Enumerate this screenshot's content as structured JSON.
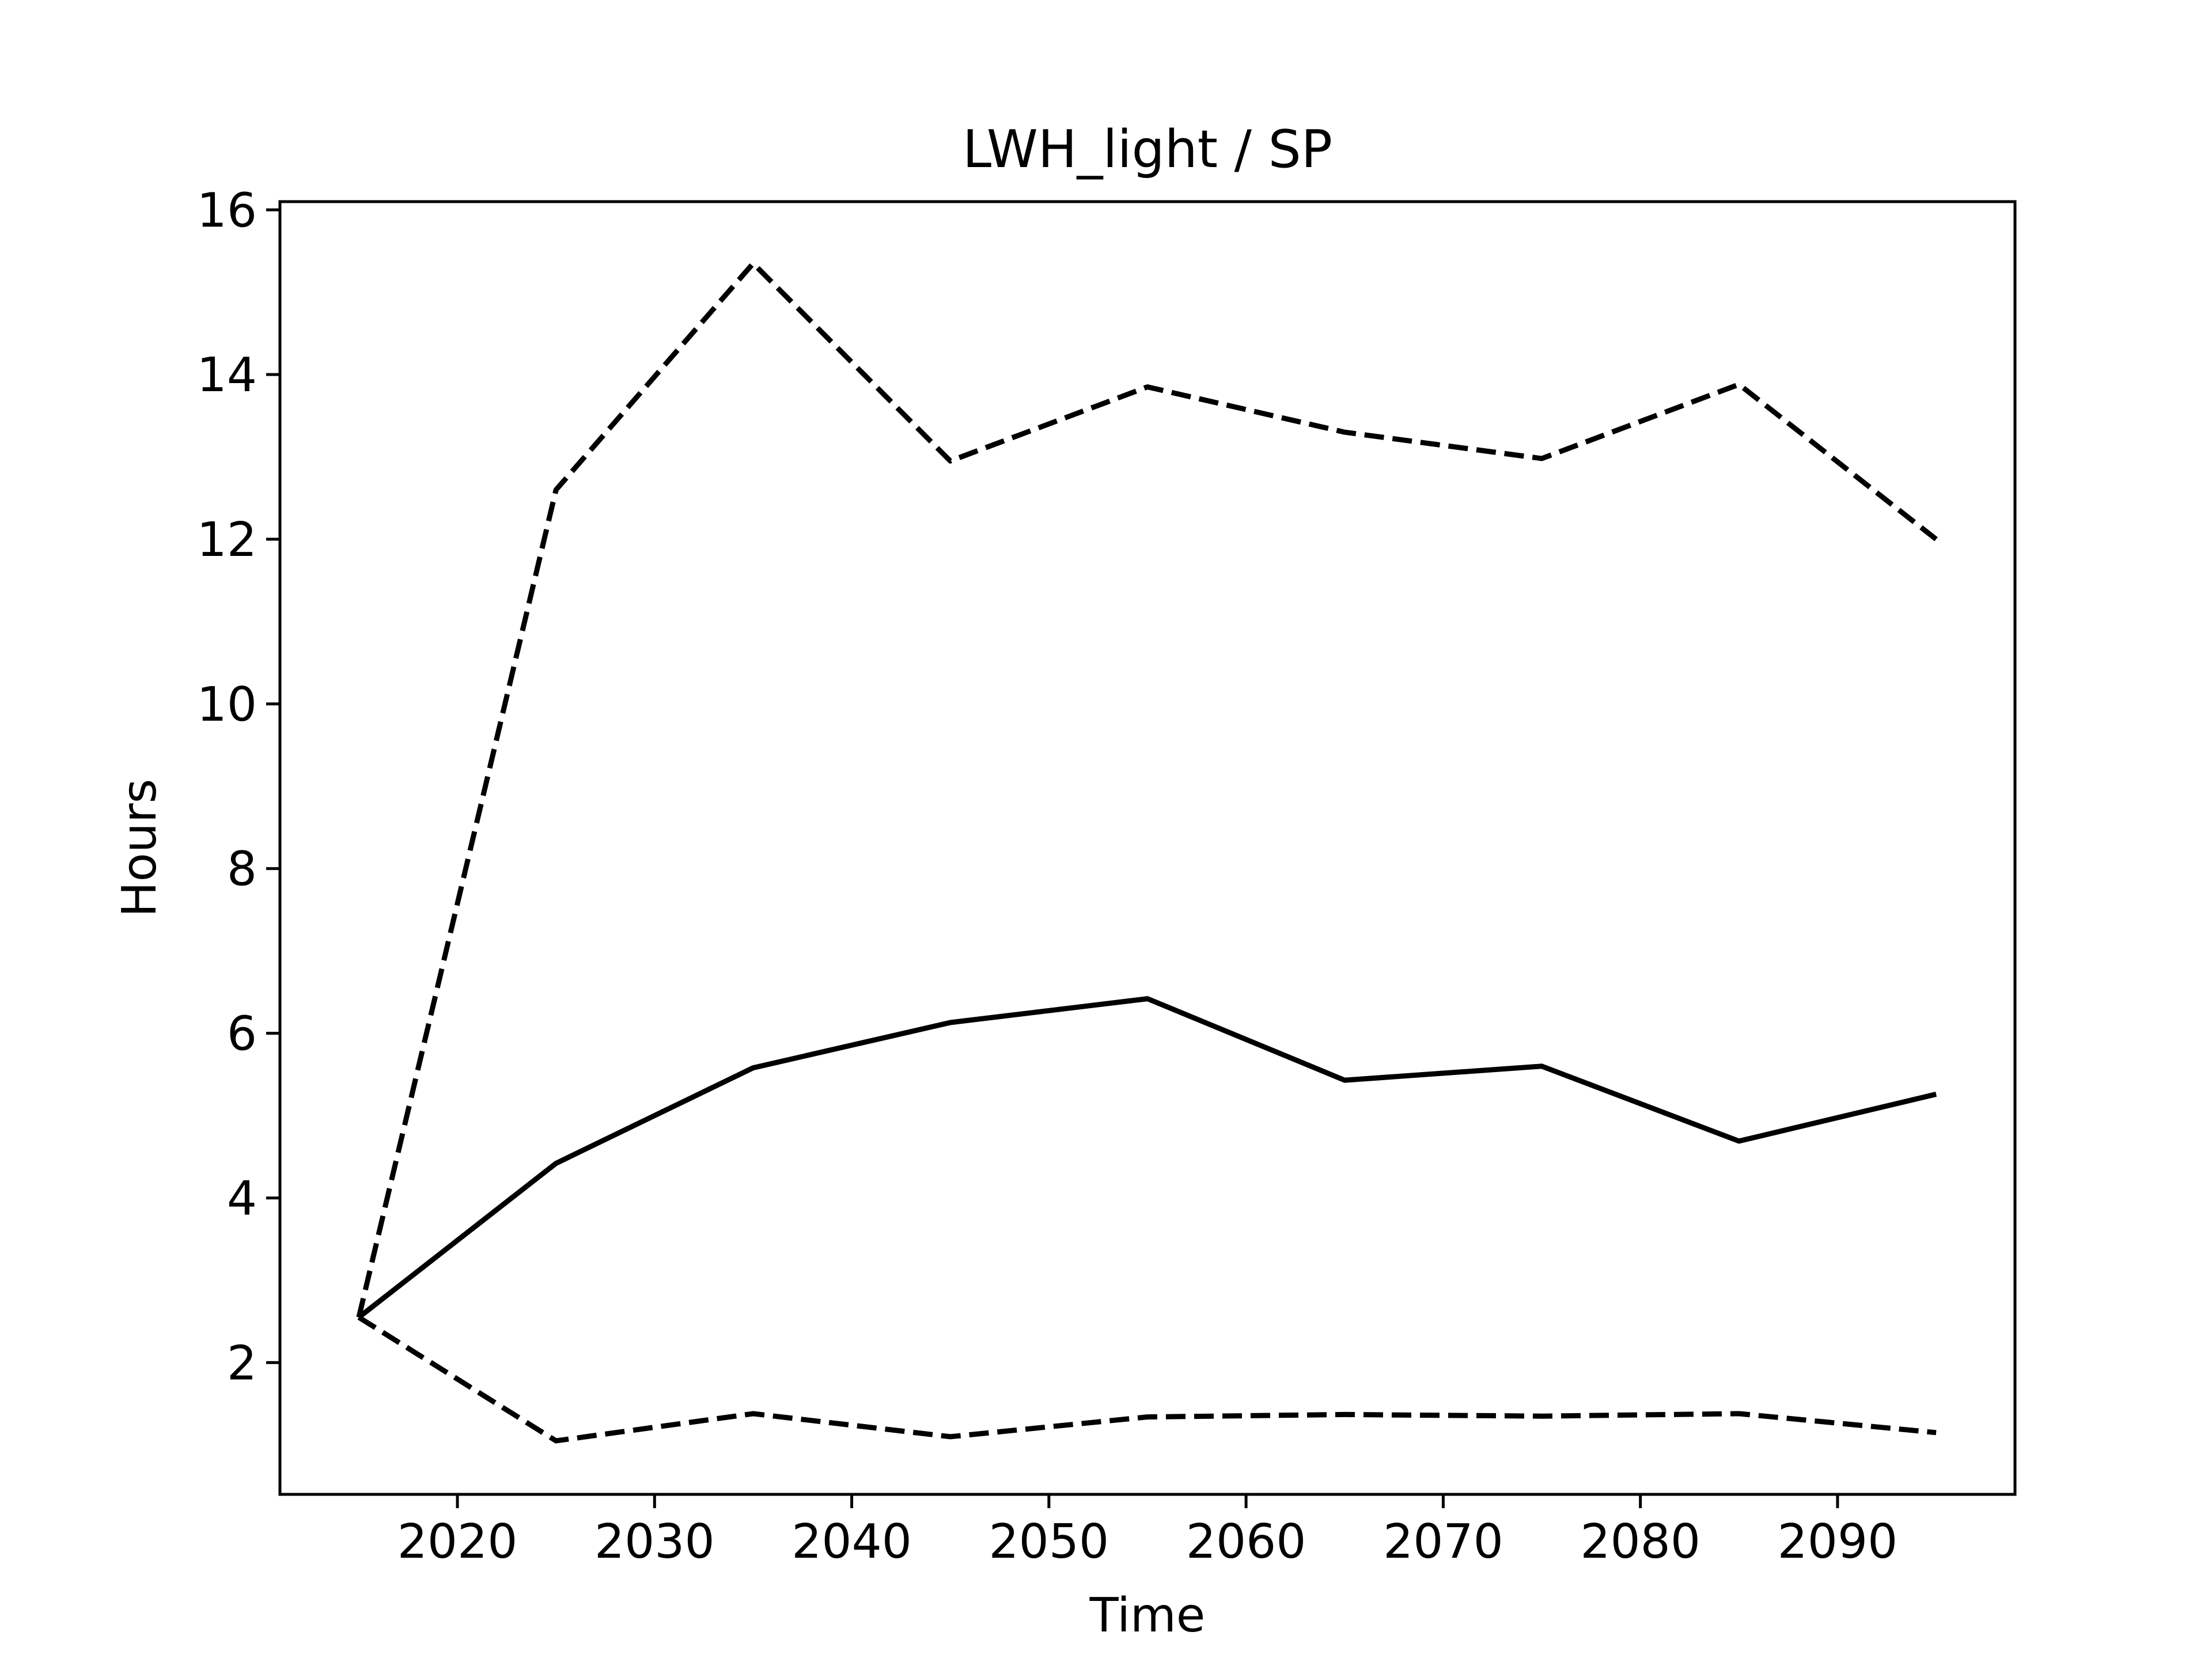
{
  "chart_data": {
    "type": "line",
    "title": "LWH_light / SP",
    "xlabel": "Time",
    "ylabel": "Hours",
    "xlim": [
      2011,
      2099
    ],
    "ylim": [
      0.4,
      16.1
    ],
    "xticks": [
      2020,
      2030,
      2040,
      2050,
      2060,
      2070,
      2080,
      2090
    ],
    "yticks": [
      2,
      4,
      6,
      8,
      10,
      12,
      14,
      16
    ],
    "x": [
      2015,
      2025,
      2035,
      2045,
      2055,
      2065,
      2075,
      2085,
      2095
    ],
    "grid": false,
    "legend": "none",
    "colors": {
      "line": "#000000",
      "background": "#ffffff"
    },
    "series": [
      {
        "style": "solid",
        "values": [
          2.55,
          4.42,
          5.58,
          6.13,
          6.42,
          5.43,
          5.6,
          4.69,
          5.26
        ]
      },
      {
        "style": "dashed",
        "values": [
          2.55,
          12.6,
          15.35,
          12.95,
          13.85,
          13.3,
          12.98,
          13.88,
          12.0
        ]
      },
      {
        "style": "dashed",
        "values": [
          2.55,
          1.05,
          1.38,
          1.1,
          1.34,
          1.37,
          1.35,
          1.38,
          1.15
        ]
      }
    ]
  }
}
